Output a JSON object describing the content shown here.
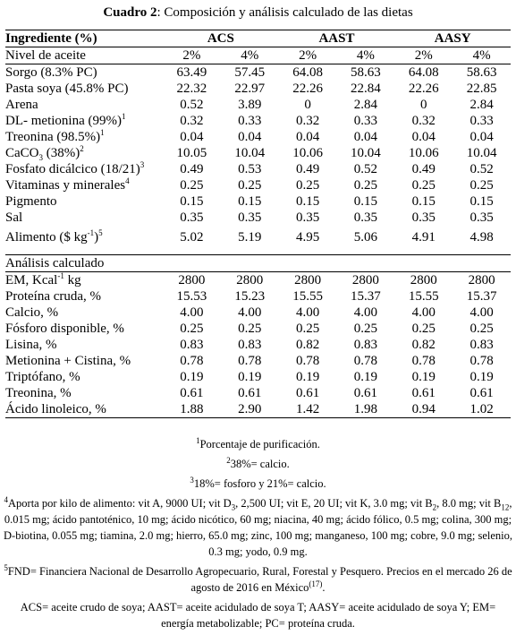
{
  "caption": {
    "label": "Cuadro 2",
    "text": ": Composición y análisis calculado de las dietas"
  },
  "header": {
    "ingredient": "Ingrediente (%)",
    "groups": [
      "ACS",
      "AAST",
      "AASY"
    ],
    "level_label": "Nivel de aceite",
    "levels": [
      "2%",
      "4%",
      "2%",
      "4%",
      "2%",
      "4%"
    ]
  },
  "ingredients": [
    {
      "label": "Sorgo (8.3% PC)",
      "values": [
        "63.49",
        "57.45",
        "64.08",
        "58.63",
        "64.08",
        "58.63"
      ]
    },
    {
      "label": "Pasta soya (45.8% PC)",
      "values": [
        "22.32",
        "22.97",
        "22.26",
        "22.84",
        "22.26",
        "22.85"
      ]
    },
    {
      "label": "Arena",
      "values": [
        "0.52",
        "3.89",
        "0",
        "2.84",
        "0",
        "2.84"
      ]
    },
    {
      "label": "DL- metionina (99%)",
      "sup": "1",
      "values": [
        "0.32",
        "0.33",
        "0.32",
        "0.33",
        "0.32",
        "0.33"
      ]
    },
    {
      "label": "Treonina (98.5%)",
      "sup": "1",
      "values": [
        "0.04",
        "0.04",
        "0.04",
        "0.04",
        "0.04",
        "0.04"
      ]
    },
    {
      "label_pre": "CaCO",
      "label_sub": "3",
      "label_post": " (38%)",
      "sup": "2",
      "values": [
        "10.05",
        "10.04",
        "10.06",
        "10.04",
        "10.06",
        "10.04"
      ]
    },
    {
      "label": "Fosfato dicálcico (18/21)",
      "sup": "3",
      "values": [
        "0.49",
        "0.53",
        "0.49",
        "0.52",
        "0.49",
        "0.52"
      ]
    },
    {
      "label": "Vitaminas y minerales",
      "sup": "4",
      "values": [
        "0.25",
        "0.25",
        "0.25",
        "0.25",
        "0.25",
        "0.25"
      ]
    },
    {
      "label": "Pigmento",
      "values": [
        "0.15",
        "0.15",
        "0.15",
        "0.15",
        "0.15",
        "0.15"
      ]
    },
    {
      "label": "Sal",
      "values": [
        "0.35",
        "0.35",
        "0.35",
        "0.35",
        "0.35",
        "0.35"
      ]
    }
  ],
  "price_row": {
    "label_pre": "Alimento ($ kg",
    "label_sup": "-1",
    "label_post": ")",
    "sup": "5",
    "values": [
      "5.02",
      "5.19",
      "4.95",
      "5.06",
      "4.91",
      "4.98"
    ]
  },
  "analysis_header": "Análisis calculado",
  "analysis": [
    {
      "label_pre": "EM, Kcal",
      "label_sup": "-1",
      "label_post": " kg",
      "values": [
        "2800",
        "2800",
        "2800",
        "2800",
        "2800",
        "2800"
      ]
    },
    {
      "label": "Proteína cruda, %",
      "values": [
        "15.53",
        "15.23",
        "15.55",
        "15.37",
        "15.55",
        "15.37"
      ]
    },
    {
      "label": "Calcio, %",
      "values": [
        "4.00",
        "4.00",
        "4.00",
        "4.00",
        "4.00",
        "4.00"
      ]
    },
    {
      "label": "Fósforo disponible, %",
      "values": [
        "0.25",
        "0.25",
        "0.25",
        "0.25",
        "0.25",
        "0.25"
      ]
    },
    {
      "label": "Lisina, %",
      "values": [
        "0.83",
        "0.83",
        "0.82",
        "0.83",
        "0.82",
        "0.83"
      ]
    },
    {
      "label": "Metionina + Cistina, %",
      "values": [
        "0.78",
        "0.78",
        "0.78",
        "0.78",
        "0.78",
        "0.78"
      ]
    },
    {
      "label": "Triptófano, %",
      "values": [
        "0.19",
        "0.19",
        "0.19",
        "0.19",
        "0.19",
        "0.19"
      ]
    },
    {
      "label": "Treonina, %",
      "values": [
        "0.61",
        "0.61",
        "0.61",
        "0.61",
        "0.61",
        "0.61"
      ]
    },
    {
      "label": "Ácido linoleico, %",
      "values": [
        "1.88",
        "2.90",
        "1.42",
        "1.98",
        "0.94",
        "1.02"
      ]
    }
  ],
  "notes": {
    "n1": {
      "mark": "1",
      "text": "Porcentaje de purificación."
    },
    "n2": {
      "mark": "2",
      "text": "38%= calcio."
    },
    "n3": {
      "mark": "3",
      "text": "18%= fosforo y 21%= calcio."
    },
    "n4": {
      "mark": "4",
      "p1": "Aporta por kilo de alimento: vit A, 9000 UI; vit D",
      "sub1": "3",
      "p2": ", 2,500 UI; vit E, 20 UI; vit K, 3.0 mg; vit B",
      "sub2": "2",
      "p3": ", 8.0 mg; vit B",
      "sub3": "12",
      "p4": ", 0.015 mg; ácido pantoténico, 10 mg; ácido nicótico, 60 mg; niacina, 40 mg; ácido fólico, 0.5 mg; colina, 300 mg; D-biotina, 0.055 mg; tiamina, 2.0 mg; hierro, 65.0 mg; zinc, 100 mg; manganeso, 100 mg; cobre, 9.0 mg; selenio, 0.3 mg; yodo, 0.9 mg."
    },
    "n5": {
      "mark": "5",
      "text": "FND= Financiera Nacional de Desarrollo Agropecuario, Rural, Forestal y Pesquero. Precios en el mercado 26 de agosto de 2016 en México",
      "ref": "(17)",
      "end": "."
    },
    "abbr": "ACS= aceite crudo de soya; AAST= aceite acidulado de soya T; AASY= aceite acidulado de soya Y; EM= energía metabolizable; PC= proteína cruda."
  }
}
